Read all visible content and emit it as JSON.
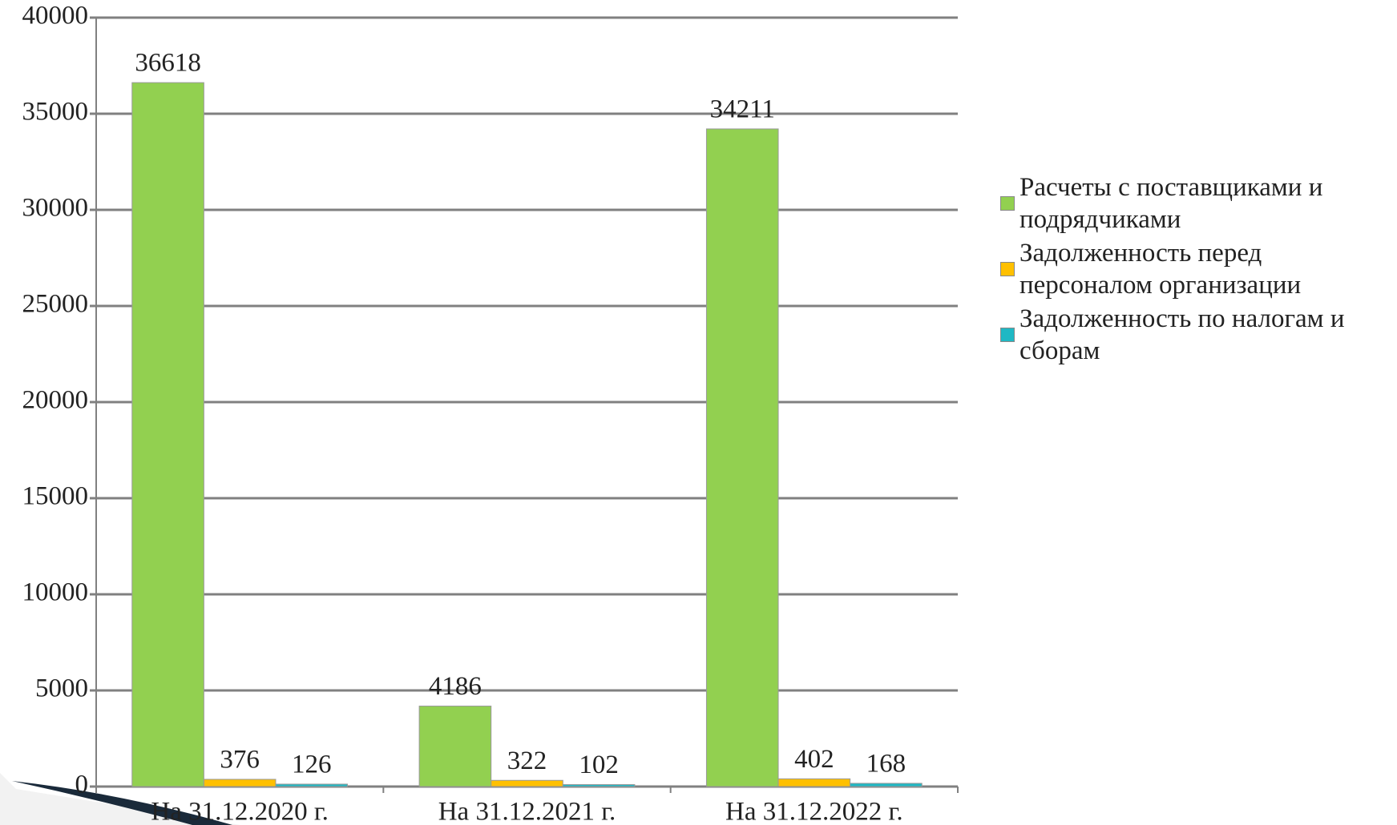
{
  "chart_data": {
    "type": "bar",
    "categories": [
      "На 31.12.2020 г.",
      "На 31.12.2021 г.",
      "На 31.12.2022 г."
    ],
    "series": [
      {
        "name": "Расчеты с поставщиками и подрядчиками",
        "color": "#92d050",
        "values": [
          36618,
          4186,
          34211
        ]
      },
      {
        "name": "Задолженность перед персоналом организации",
        "color": "#ffc000",
        "values": [
          376,
          322,
          402
        ]
      },
      {
        "name": "Задолженность по налогам и сборам",
        "color": "#1fb8c4",
        "values": [
          126,
          102,
          168
        ]
      }
    ],
    "ylim": [
      0,
      40000
    ],
    "yticks": [
      0,
      5000,
      10000,
      15000,
      20000,
      25000,
      30000,
      35000,
      40000
    ],
    "grid": true,
    "legend": "right"
  }
}
